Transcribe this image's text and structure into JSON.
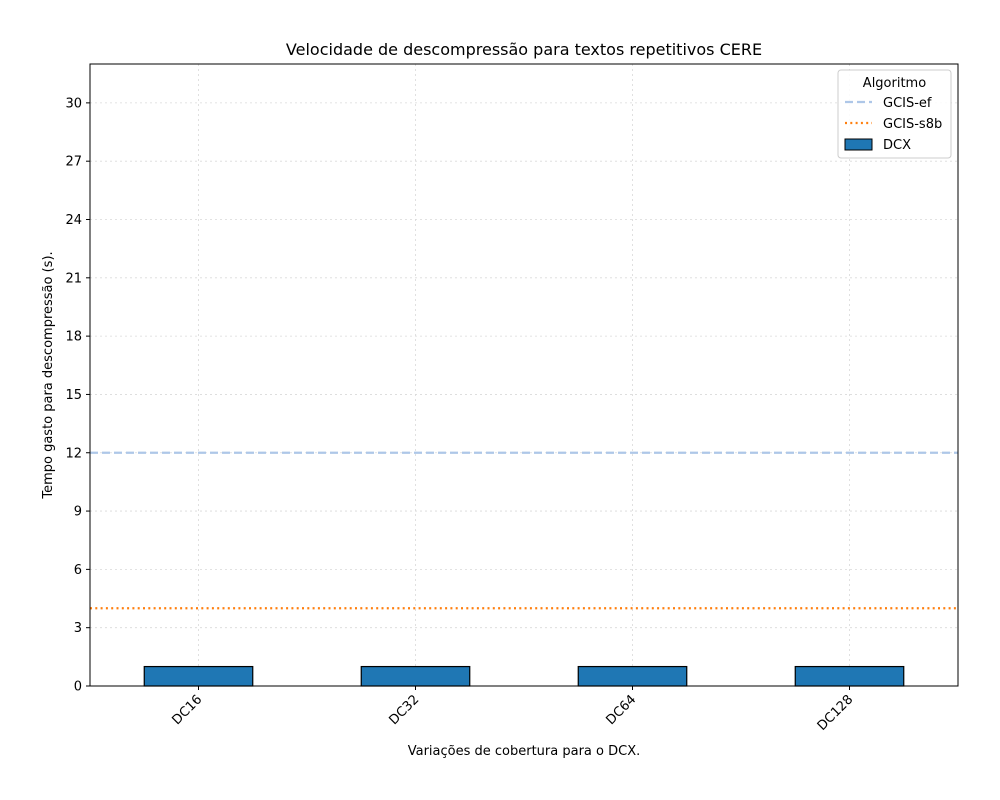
{
  "chart_data": {
    "type": "bar",
    "title": "Velocidade de descompressão para textos repetitivos CERE",
    "xlabel": "Variações de cobertura para o DCX.",
    "ylabel": "Tempo gasto para descompressão (s).",
    "categories": [
      "DC16",
      "DC32",
      "DC64",
      "DC128"
    ],
    "series": [
      {
        "name": "DCX",
        "values": [
          1.0,
          1.0,
          1.0,
          1.0
        ],
        "color": "#1f77b4"
      }
    ],
    "reference_lines": [
      {
        "name": "GCIS-ef",
        "value": 12.0,
        "color": "#aec7e8",
        "style": "dashed"
      },
      {
        "name": "GCIS-s8b",
        "value": 4.0,
        "color": "#ff7f0e",
        "style": "dotted"
      }
    ],
    "ylim": [
      0,
      32
    ],
    "yticks": [
      0,
      3,
      6,
      9,
      12,
      15,
      18,
      21,
      24,
      27,
      30
    ],
    "grid": true,
    "legend": {
      "title": "Algoritmo",
      "placement": "top-right"
    }
  }
}
